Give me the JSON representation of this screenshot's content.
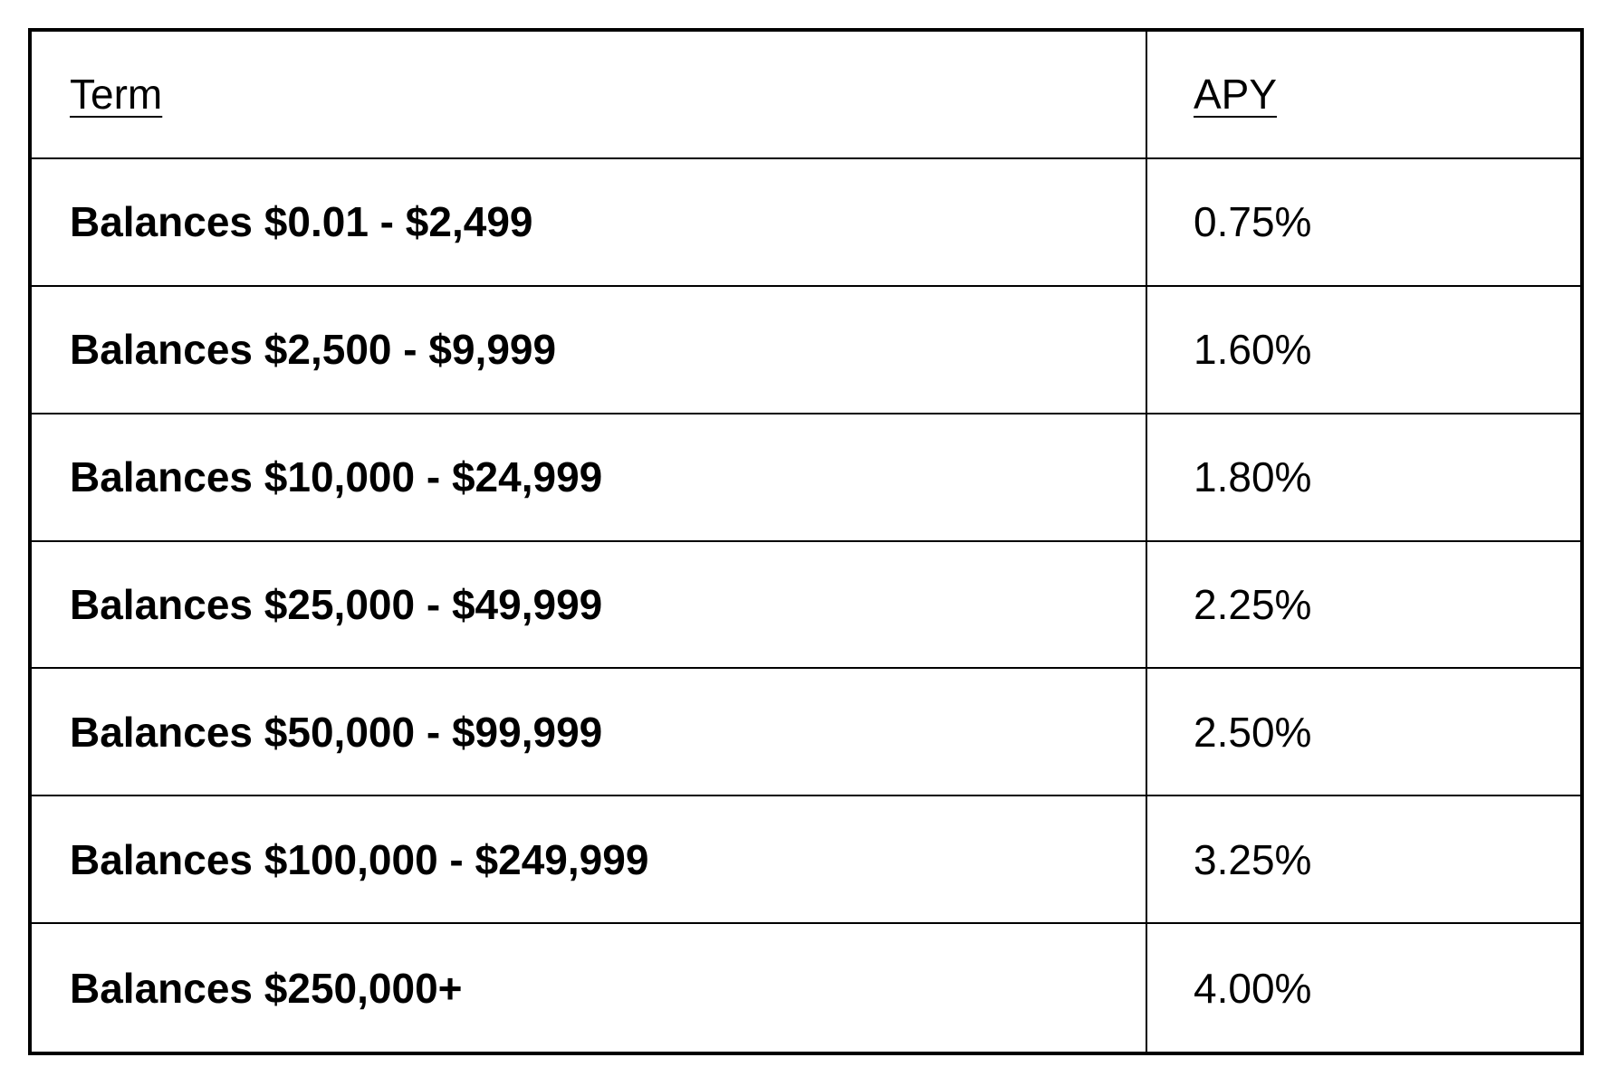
{
  "table": {
    "headers": {
      "term": "Term",
      "apy": "APY"
    },
    "rows": [
      {
        "term": "Balances $0.01 - $2,499",
        "apy": "0.75%"
      },
      {
        "term": "Balances $2,500 - $9,999",
        "apy": "1.60%"
      },
      {
        "term": "Balances $10,000 - $24,999",
        "apy": "1.80%"
      },
      {
        "term": "Balances $25,000 - $49,999",
        "apy": "2.25%"
      },
      {
        "term": "Balances $50,000 - $99,999",
        "apy": "2.50%"
      },
      {
        "term": "Balances $100,000 - $249,999",
        "apy": "3.25%"
      },
      {
        "term": "Balances $250,000+",
        "apy": "4.00%"
      }
    ]
  },
  "colors": {
    "border": "#000000",
    "text": "#000000",
    "background": "#ffffff"
  }
}
